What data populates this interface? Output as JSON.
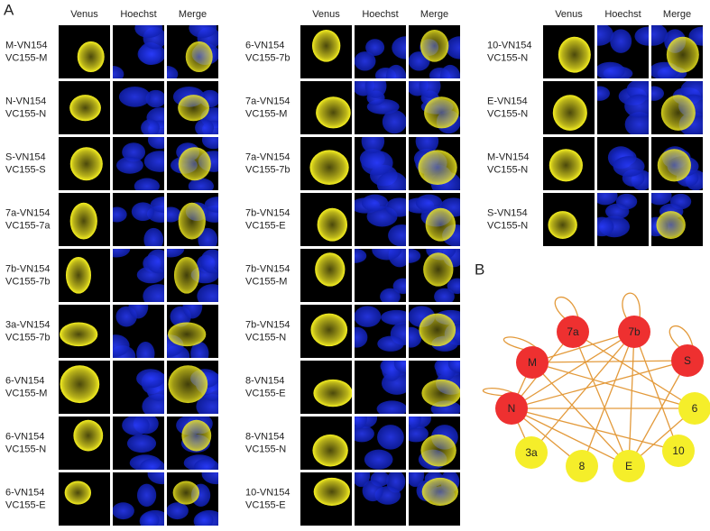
{
  "panel_a": {
    "label": "A",
    "columns": [
      "Venus",
      "Hoechst",
      "Merge"
    ],
    "groups": [
      {
        "rows": [
          [
            "M-VN154",
            "VC155-M"
          ],
          [
            "N-VN154",
            "VC155-N"
          ],
          [
            "S-VN154",
            "VC155-S"
          ],
          [
            "7a-VN154",
            "VC155-7a"
          ],
          [
            "7b-VN154",
            "VC155-7b"
          ],
          [
            "3a-VN154",
            "VC155-7b"
          ],
          [
            "6-VN154",
            "VC155-M"
          ],
          [
            "6-VN154",
            "VC155-N"
          ],
          [
            "6-VN154",
            "VC155-E"
          ]
        ]
      },
      {
        "rows": [
          [
            "6-VN154",
            "VC155-7b"
          ],
          [
            "7a-VN154",
            "VC155-M"
          ],
          [
            "7a-VN154",
            "VC155-7b"
          ],
          [
            "7b-VN154",
            "VC155-E"
          ],
          [
            "7b-VN154",
            "VC155-M"
          ],
          [
            "7b-VN154",
            "VC155-N"
          ],
          [
            "8-VN154",
            "VC155-E"
          ],
          [
            "8-VN154",
            "VC155-N"
          ],
          [
            "10-VN154",
            "VC155-E"
          ]
        ]
      },
      {
        "rows": [
          [
            "10-VN154",
            "VC155-N"
          ],
          [
            "E-VN154",
            "VC155-N"
          ],
          [
            "M-VN154",
            "VC155-N"
          ],
          [
            "S-VN154",
            "VC155-N"
          ]
        ]
      }
    ]
  },
  "panel_b": {
    "label": "B",
    "nodes": [
      {
        "label": "7a",
        "color": "#ee3030"
      },
      {
        "label": "7b",
        "color": "#ee3030"
      },
      {
        "label": "M",
        "color": "#ee3030"
      },
      {
        "label": "S",
        "color": "#ee3030"
      },
      {
        "label": "N",
        "color": "#ee3030"
      },
      {
        "label": "6",
        "color": "#f5ee2a"
      },
      {
        "label": "3a",
        "color": "#f5ee2a"
      },
      {
        "label": "8",
        "color": "#f5ee2a"
      },
      {
        "label": "E",
        "color": "#f5ee2a"
      },
      {
        "label": "10",
        "color": "#f5ee2a"
      }
    ]
  }
}
